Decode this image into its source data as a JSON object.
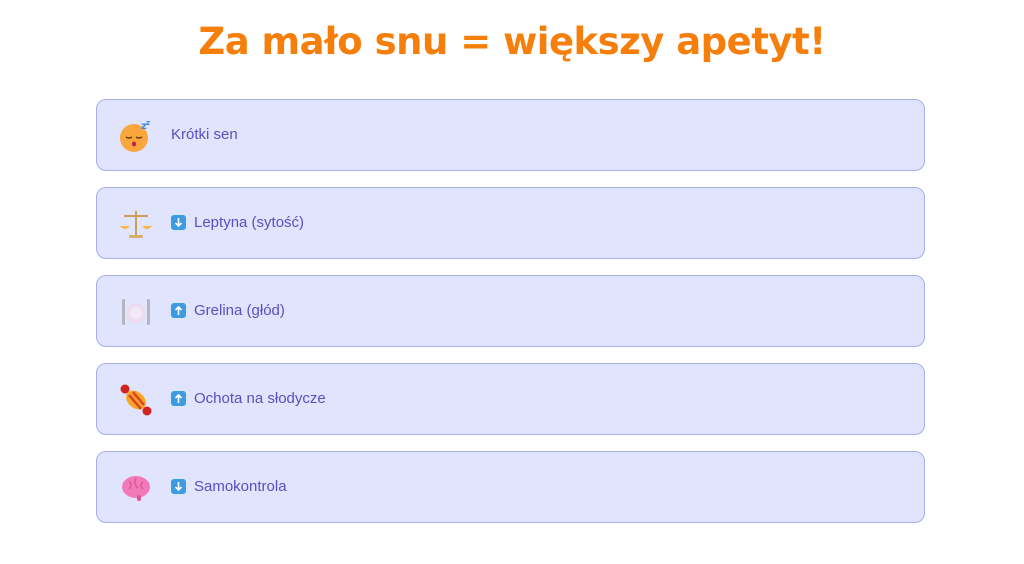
{
  "title": "Za mało snu = większy apetyt!",
  "items": [
    {
      "icon": "sleeping-face-icon",
      "arrow": null,
      "label": "Krótki sen"
    },
    {
      "icon": "balance-scale-icon",
      "arrow": "down",
      "label": "Leptyna (sytość)"
    },
    {
      "icon": "plate-cutlery-icon",
      "arrow": "up",
      "label": "Grelina (głód)"
    },
    {
      "icon": "candy-icon",
      "arrow": "up",
      "label": "Ochota na słodycze"
    },
    {
      "icon": "brain-icon",
      "arrow": "down",
      "label": "Samokontrola"
    }
  ],
  "colors": {
    "title": "#f57f0a",
    "card_bg": "#e0e4fd",
    "card_border": "#a9aeee",
    "text": "#5a4fc0",
    "arrow_badge": "#3d9be0"
  }
}
